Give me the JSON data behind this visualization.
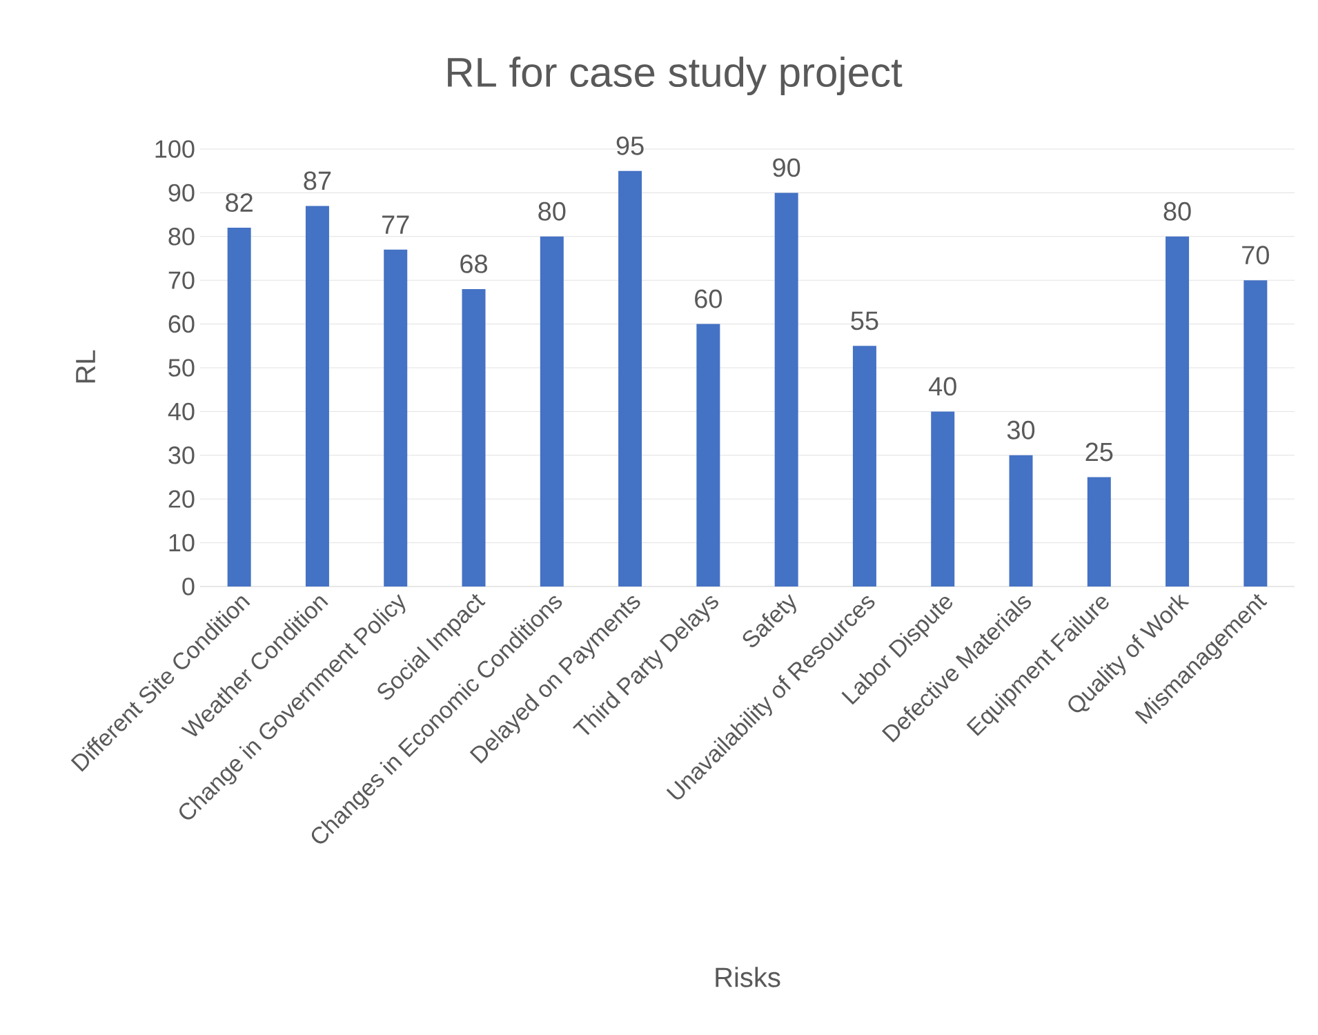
{
  "chart_data": {
    "type": "bar",
    "title": "RL for case study project",
    "xlabel": "Risks",
    "ylabel": "RL",
    "categories": [
      "Different Site Condition",
      "Weather Condition",
      "Change in Government Policy",
      "Social Impact",
      "Changes in Economic Conditions",
      "Delayed on Payments",
      "Third Party Delays",
      "Safety",
      "Unavailability of Resources",
      "Labor Dispute",
      "Defective Materials",
      "Equipment Failure",
      "Quality of Work",
      "Mismanagement"
    ],
    "values": [
      82,
      87,
      77,
      68,
      80,
      95,
      60,
      90,
      55,
      40,
      30,
      25,
      80,
      70
    ],
    "color": "#4472c4",
    "ylim": [
      0,
      100
    ],
    "yticks": [
      0,
      10,
      20,
      30,
      40,
      50,
      60,
      70,
      80,
      90,
      100
    ],
    "grid": "y",
    "data_labels": true
  }
}
